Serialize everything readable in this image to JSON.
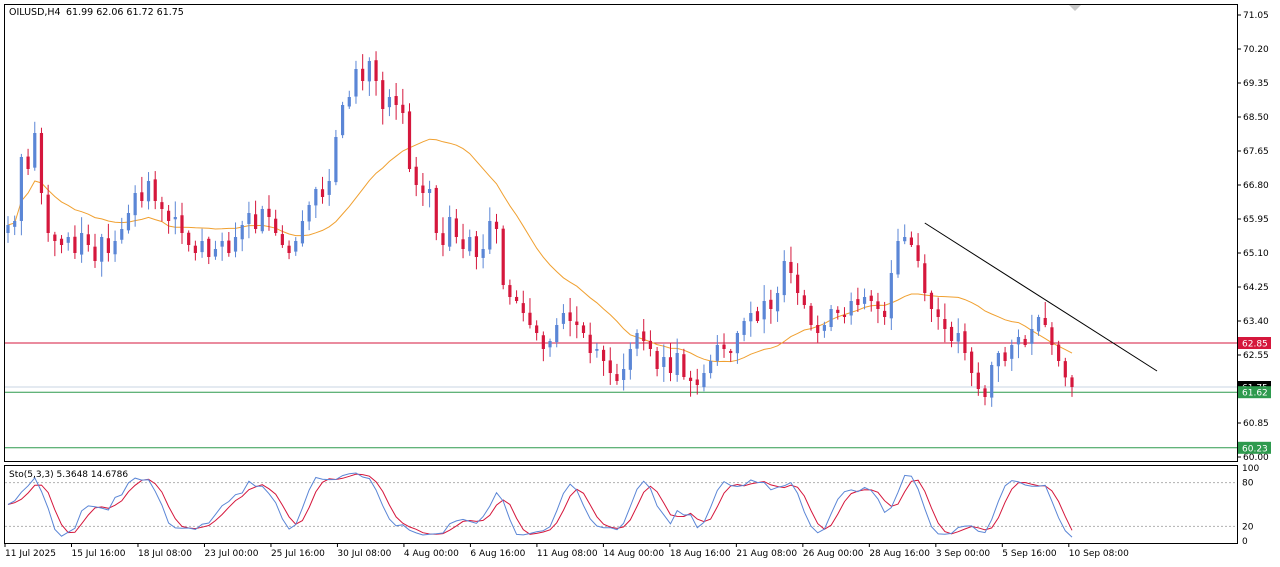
{
  "header": {
    "symbol": "OILUSD,H4",
    "ohlc": "61.99 62.06 61.72 61.75"
  },
  "indicator": {
    "label": "Sto(5,3,3) 5.3648 14.6786",
    "scale_ticks": [
      "100",
      "80",
      "20",
      "0"
    ]
  },
  "x_ticks": [
    "11 Jul 2025",
    "15 Jul 16:00",
    "18 Jul 08:00",
    "23 Jul 00:00",
    "25 Jul 16:00",
    "30 Jul 08:00",
    "4 Aug 00:00",
    "6 Aug 16:00",
    "11 Aug 08:00",
    "14 Aug 00:00",
    "18 Aug 16:00",
    "21 Aug 08:00",
    "26 Aug 00:00",
    "28 Aug 16:00",
    "3 Sep 00:00",
    "5 Sep 16:00",
    "10 Sep 08:00"
  ],
  "y_ticks": [
    "71.05",
    "70.20",
    "69.35",
    "68.50",
    "67.65",
    "66.80",
    "65.95",
    "65.10",
    "64.25",
    "63.40",
    "62.55",
    "60.85",
    "60.00"
  ],
  "price_tags": [
    {
      "value": "62.85",
      "color": "#d5173c"
    },
    {
      "value": "61.75",
      "color": "#000000"
    },
    {
      "value": "61.62",
      "color": "#2e9a4e"
    },
    {
      "value": "60.23",
      "color": "#2e9a4e"
    }
  ],
  "colors": {
    "bull": "#5b86d6",
    "bear": "#d5173c",
    "ma": "#f0a030",
    "resistance_line": "#d5173c",
    "support_line": "#2e9a4e",
    "trendline": "#000000",
    "sto_main": "#5b86d6",
    "sto_signal": "#d5173c"
  },
  "chart_data": {
    "type": "candlestick",
    "symbol": "OILUSD",
    "timeframe": "H4",
    "y_range": [
      59.9,
      71.3
    ],
    "horizontal_lines": [
      62.85,
      61.62,
      60.23
    ],
    "trendline": {
      "from": [
        "3 Sep 00:00",
        65.85
      ],
      "to": [
        "11 Sep",
        62.15
      ]
    },
    "stochastic": {
      "params": "5,3,3",
      "main": 5.3648,
      "signal": 14.6786,
      "levels": [
        20,
        80
      ],
      "range": [
        0,
        100
      ]
    },
    "last": {
      "open": 61.99,
      "high": 62.06,
      "low": 61.72,
      "close": 61.75
    },
    "closes": [
      65.8,
      65.9,
      67.5,
      67.2,
      68.1,
      66.6,
      65.6,
      65.4,
      65.3,
      65.5,
      65.1,
      65.6,
      65.3,
      64.9,
      65.5,
      65.1,
      65.4,
      65.7,
      66.1,
      66.6,
      66.4,
      66.9,
      66.4,
      66.2,
      65.9,
      66.0,
      65.6,
      65.3,
      65.1,
      65.4,
      65.0,
      65.2,
      65.4,
      65.1,
      65.5,
      65.8,
      66.1,
      65.7,
      66.2,
      66.0,
      65.6,
      65.3,
      65.1,
      65.4,
      65.9,
      66.3,
      66.7,
      66.5,
      66.9,
      68.0,
      68.8,
      69.0,
      69.7,
      69.4,
      69.9,
      69.4,
      68.7,
      69.0,
      68.8,
      68.6,
      67.2,
      66.8,
      66.6,
      66.7,
      65.6,
      65.3,
      66.0,
      65.5,
      65.2,
      65.5,
      65.0,
      65.2,
      65.9,
      65.7,
      64.3,
      64.0,
      63.9,
      63.6,
      63.3,
      63.1,
      62.7,
      62.9,
      63.3,
      63.6,
      63.4,
      63.3,
      63.1,
      62.6,
      62.7,
      62.4,
      62.1,
      61.9,
      62.2,
      62.7,
      63.1,
      62.9,
      62.7,
      62.2,
      62.5,
      62.1,
      62.6,
      62.0,
      61.9,
      61.8,
      62.1,
      62.4,
      62.8,
      62.7,
      62.6,
      63.1,
      63.4,
      63.6,
      63.4,
      63.9,
      63.7,
      64.1,
      64.9,
      64.6,
      64.1,
      63.8,
      63.3,
      63.1,
      63.3,
      63.7,
      63.6,
      63.5,
      63.9,
      63.8,
      64.0,
      63.9,
      63.7,
      63.5,
      64.6,
      65.4,
      65.5,
      65.3,
      64.9,
      64.1,
      63.7,
      63.5,
      63.2,
      62.9,
      63.1,
      62.6,
      62.1,
      61.7,
      61.5,
      62.3,
      62.6,
      62.4,
      62.8,
      63.0,
      62.8,
      63.2,
      63.5,
      63.3,
      62.8,
      62.4,
      61.99,
      61.75
    ]
  }
}
